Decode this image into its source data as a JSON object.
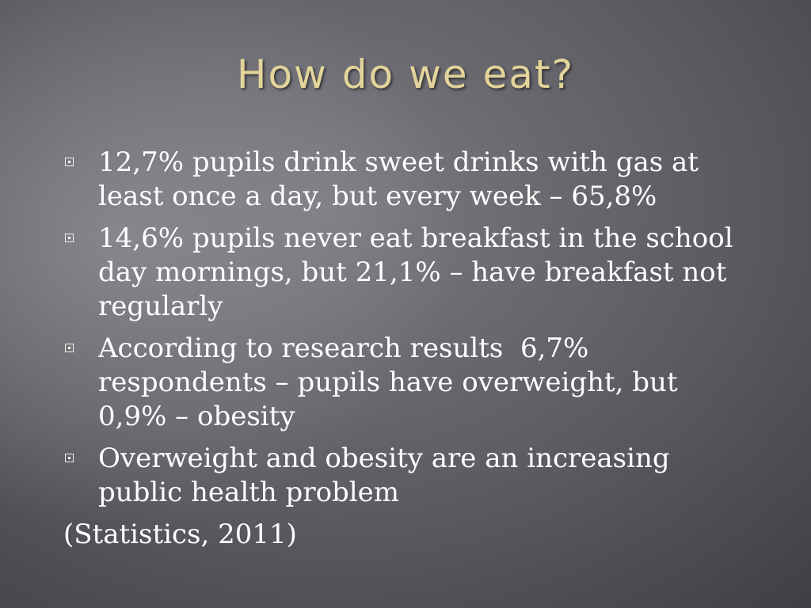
{
  "slide": {
    "title": "How do we eat?",
    "bullets": [
      {
        "text": "12,7% pupils drink sweet drinks with gas at least once a day, but every week – 65,8%"
      },
      {
        "text": "14,6% pupils never eat breakfast in the school day mornings, but 21,1% – have breakfast not regularly"
      },
      {
        "text": "According to research results  6,7% respondents – pupils have overweight, but 0,9% – obesity"
      },
      {
        "text": "Overweight and obesity are an increasing public health problem"
      }
    ],
    "source": "(Statistics, 2011)",
    "colors": {
      "title": "#e2d49a",
      "body_text": "#ffffff",
      "background": "#5c5b61"
    },
    "bullet_icon": "square-bullet-icon"
  }
}
